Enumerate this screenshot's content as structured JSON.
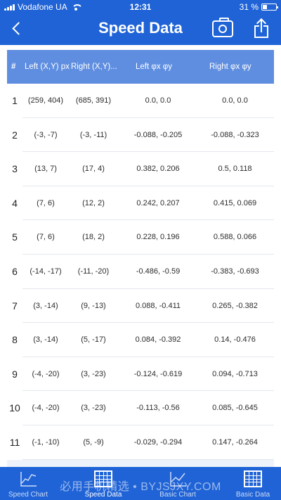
{
  "status": {
    "carrier": "Vodafone UA",
    "time": "12:31",
    "battery": "31 %",
    "battery_level": 0.31
  },
  "nav": {
    "title": "Speed Data"
  },
  "table": {
    "headers": {
      "idx": "#",
      "left": "Left (X,Y) px",
      "right": "Right (X,Y)...",
      "left_phi": "Left φx φy",
      "right_phi": "Right φx φy"
    },
    "rows": [
      {
        "idx": "1",
        "left": "(259, 404)",
        "right": "(685, 391)",
        "left_phi": "0.0, 0.0",
        "right_phi": "0.0, 0.0"
      },
      {
        "idx": "2",
        "left": "(-3, -7)",
        "right": "(-3, -11)",
        "left_phi": "-0.088, -0.205",
        "right_phi": "-0.088, -0.323"
      },
      {
        "idx": "3",
        "left": "(13, 7)",
        "right": "(17, 4)",
        "left_phi": "0.382, 0.206",
        "right_phi": "0.5, 0.118"
      },
      {
        "idx": "4",
        "left": "(7, 6)",
        "right": "(12, 2)",
        "left_phi": "0.242, 0.207",
        "right_phi": "0.415, 0.069"
      },
      {
        "idx": "5",
        "left": "(7, 6)",
        "right": "(18, 2)",
        "left_phi": "0.228, 0.196",
        "right_phi": "0.588, 0.066"
      },
      {
        "idx": "6",
        "left": "(-14, -17)",
        "right": "(-11, -20)",
        "left_phi": "-0.486, -0.59",
        "right_phi": "-0.383, -0.693"
      },
      {
        "idx": "7",
        "left": "(3, -14)",
        "right": "(9, -13)",
        "left_phi": "0.088, -0.411",
        "right_phi": "0.265, -0.382"
      },
      {
        "idx": "8",
        "left": "(3, -14)",
        "right": "(5, -17)",
        "left_phi": "0.084, -0.392",
        "right_phi": "0.14, -0.476"
      },
      {
        "idx": "9",
        "left": "(-4, -20)",
        "right": "(3, -23)",
        "left_phi": "-0.124, -0.619",
        "right_phi": "0.094, -0.713"
      },
      {
        "idx": "10",
        "left": "(-4, -20)",
        "right": "(3, -23)",
        "left_phi": "-0.113, -0.56",
        "right_phi": "0.085, -0.645"
      },
      {
        "idx": "11",
        "left": "(-1, -10)",
        "right": "(5, -9)",
        "left_phi": "-0.029, -0.294",
        "right_phi": "0.147, -0.264"
      }
    ]
  },
  "tabs": [
    {
      "label": "Speed Chart",
      "icon": "line-chart-icon",
      "active": false
    },
    {
      "label": "Speed Data",
      "icon": "grid-icon",
      "active": true
    },
    {
      "label": "Basic Chart",
      "icon": "line-chart-icon",
      "active": false
    },
    {
      "label": "Basic Data",
      "icon": "grid-icon",
      "active": false
    }
  ],
  "watermark": "必用手机精选 • BYJSJXY.COM",
  "colors": {
    "primary": "#1f63d6",
    "header": "#5f8ee0",
    "row_bg": "#ffffff"
  }
}
